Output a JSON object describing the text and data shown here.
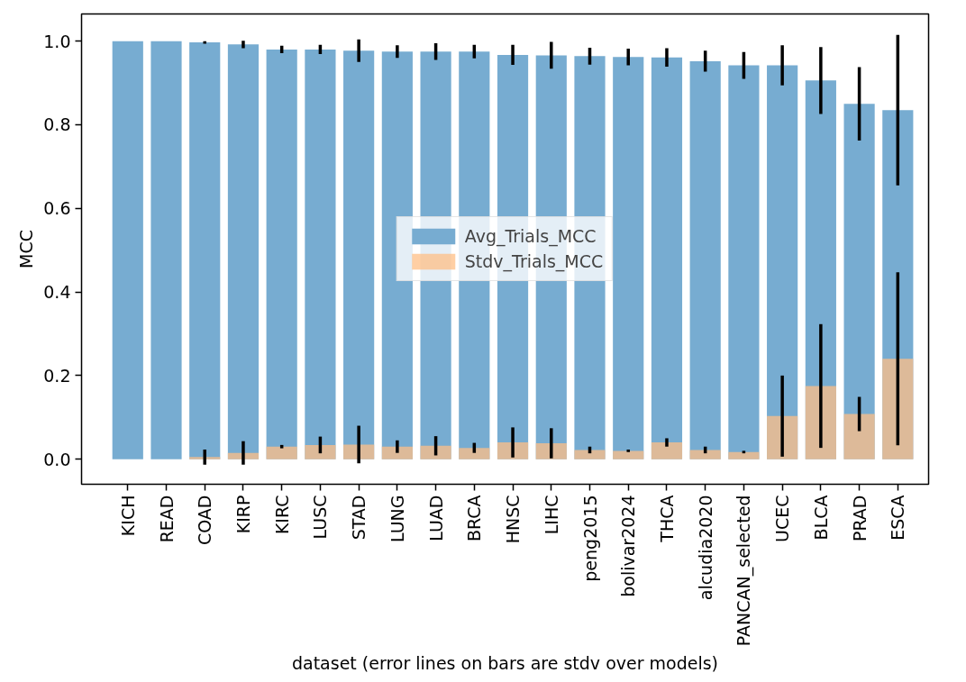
{
  "chart_data": {
    "type": "bar",
    "xlabel": "dataset (error lines on bars are stdv over models)",
    "ylabel": "MCC",
    "categories": [
      "KICH",
      "READ",
      "COAD",
      "KIRP",
      "KIRC",
      "LUSC",
      "STAD",
      "LUNG",
      "LUAD",
      "BRCA",
      "HNSC",
      "LIHC",
      "peng2015",
      "bolivar2024",
      "THCA",
      "alcudia2020",
      "PANCAN_selected",
      "UCEC",
      "BLCA",
      "PRAD",
      "ESCA"
    ],
    "series": [
      {
        "name": "Avg_Trials_MCC",
        "color": "#77acd1",
        "values": [
          1.0,
          1.0,
          0.997,
          0.992,
          0.98,
          0.98,
          0.977,
          0.975,
          0.975,
          0.975,
          0.967,
          0.966,
          0.964,
          0.962,
          0.961,
          0.952,
          0.942,
          0.942,
          0.906,
          0.85,
          0.835
        ],
        "errors": [
          null,
          null,
          0.003,
          0.009,
          0.009,
          0.011,
          0.027,
          0.015,
          0.02,
          0.016,
          0.024,
          0.032,
          0.02,
          0.02,
          0.022,
          0.025,
          0.032,
          0.048,
          0.08,
          0.088,
          0.18
        ]
      },
      {
        "name": "Stdv_Trials_MCC",
        "color": "#ffbf86",
        "values": [
          0,
          0,
          0.005,
          0.015,
          0.03,
          0.034,
          0.035,
          0.03,
          0.032,
          0.027,
          0.04,
          0.038,
          0.022,
          0.02,
          0.04,
          0.022,
          0.017,
          0.103,
          0.175,
          0.108,
          0.24
        ],
        "errors": [
          null,
          null,
          0.018,
          0.028,
          0.004,
          0.02,
          0.045,
          0.015,
          0.023,
          0.012,
          0.036,
          0.036,
          0.008,
          0.003,
          0.01,
          0.008,
          0.003,
          0.097,
          0.148,
          0.041,
          0.207
        ]
      }
    ],
    "ylim": [
      -0.06,
      1.065
    ],
    "yticks": [
      {
        "value": 0,
        "label": "0.0"
      },
      {
        "value": 0.2,
        "label": "0.2"
      },
      {
        "value": 0.4,
        "label": "0.4"
      },
      {
        "value": 0.6,
        "label": "0.6"
      },
      {
        "value": 0.8,
        "label": "0.8"
      },
      {
        "value": 1.0,
        "label": "1.0"
      }
    ],
    "legend": "center",
    "grid": false
  }
}
